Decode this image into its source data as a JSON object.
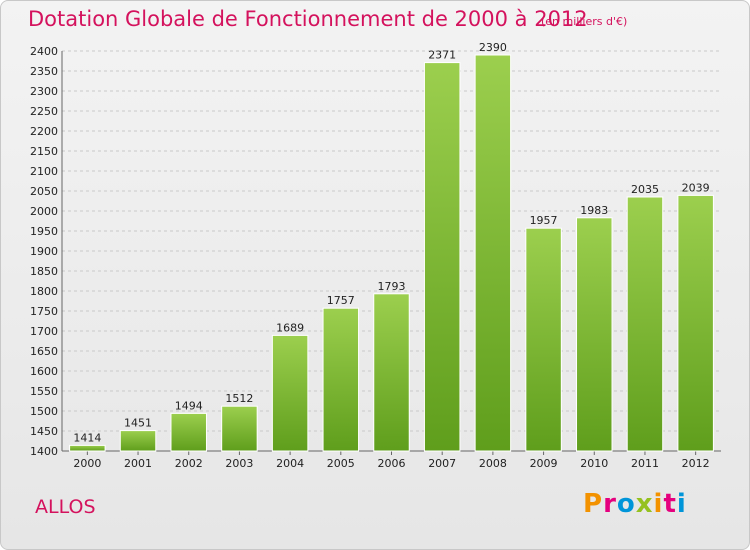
{
  "title": "Dotation Globale de Fonctionnement de 2000 à 2012",
  "subtitle": "(en milliers d'€)",
  "commune": "ALLOS",
  "logo": "Proxiti",
  "colors": {
    "title": "#d4125d",
    "bar_top": "#9ccf4e",
    "bar_bottom": "#5f9e1c",
    "logo_letters": [
      "#f39200",
      "#e5007e",
      "#0095d9",
      "#95c11f",
      "#f39200",
      "#e5007e",
      "#0095d9"
    ]
  },
  "chart_data": {
    "type": "bar",
    "title": "Dotation Globale de Fonctionnement de 2000 à 2012",
    "subtitle": "(en milliers d'€)",
    "categories": [
      "2000",
      "2001",
      "2002",
      "2003",
      "2004",
      "2005",
      "2006",
      "2007",
      "2008",
      "2009",
      "2010",
      "2011",
      "2012"
    ],
    "values": [
      1414,
      1451,
      1494,
      1512,
      1689,
      1757,
      1793,
      2371,
      2390,
      1957,
      1983,
      2035,
      2039
    ],
    "ylim": [
      1400,
      2400
    ],
    "yticks": [
      1400,
      1450,
      1500,
      1550,
      1600,
      1650,
      1700,
      1750,
      1800,
      1850,
      1900,
      1950,
      2000,
      2050,
      2100,
      2150,
      2200,
      2250,
      2300,
      2350,
      2400
    ],
    "grid": true,
    "data_labels": true
  }
}
